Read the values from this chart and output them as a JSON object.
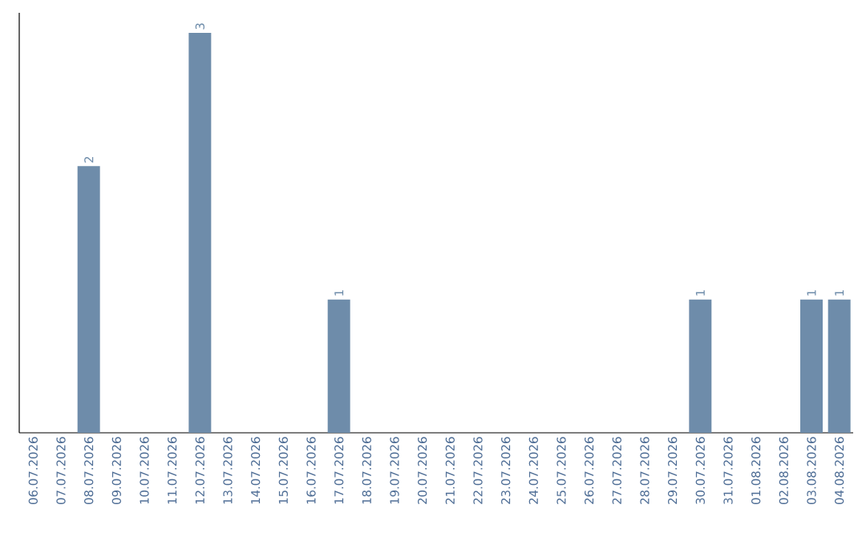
{
  "chart_data": {
    "type": "bar",
    "categories": [
      "06.07.2026",
      "07.07.2026",
      "08.07.2026",
      "09.07.2026",
      "10.07.2026",
      "11.07.2026",
      "12.07.2026",
      "13.07.2026",
      "14.07.2026",
      "15.07.2026",
      "16.07.2026",
      "17.07.2026",
      "18.07.2026",
      "19.07.2026",
      "20.07.2026",
      "21.07.2026",
      "22.07.2026",
      "23.07.2026",
      "24.07.2026",
      "25.07.2026",
      "26.07.2026",
      "27.07.2026",
      "28.07.2026",
      "29.07.2026",
      "30.07.2026",
      "31.07.2026",
      "01.08.2026",
      "02.08.2026",
      "03.08.2026",
      "04.08.2026"
    ],
    "values": [
      0,
      0,
      2,
      0,
      0,
      0,
      3,
      0,
      0,
      0,
      0,
      1,
      0,
      0,
      0,
      0,
      0,
      0,
      0,
      0,
      0,
      0,
      0,
      0,
      1,
      0,
      0,
      0,
      1,
      1
    ],
    "value_labels": [
      null,
      null,
      "2",
      null,
      null,
      null,
      "3",
      null,
      null,
      null,
      null,
      "1",
      null,
      null,
      null,
      null,
      null,
      null,
      null,
      null,
      null,
      null,
      null,
      null,
      "1",
      null,
      null,
      null,
      "1",
      "1"
    ],
    "color": "#6e8caa",
    "tick_labels": "x"
  }
}
